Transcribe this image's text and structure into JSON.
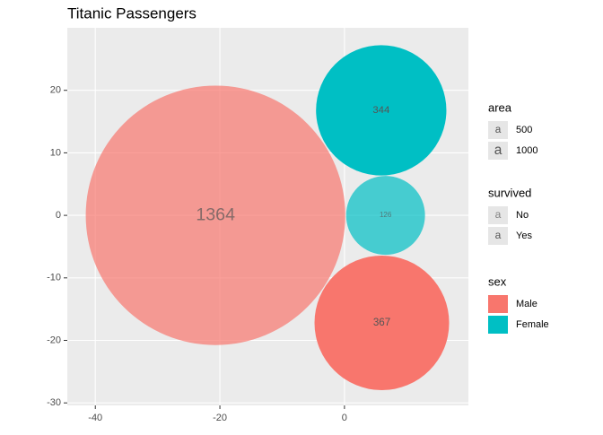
{
  "chart_data": {
    "type": "packed-circle",
    "title": "Titanic Passengers",
    "x": [
      -20.7,
      5.9,
      6.6,
      6.0
    ],
    "y": [
      0,
      16.8,
      0,
      -17.2
    ],
    "values": [
      1364,
      344,
      126,
      367
    ],
    "sex": [
      "Male",
      "Female",
      "Female",
      "Male"
    ],
    "survived": [
      "No",
      "Yes",
      "No",
      "Yes"
    ],
    "xlim": [
      -44.5,
      19.9
    ],
    "ylim": [
      -30.4,
      30.0
    ],
    "xticks": [
      -40,
      -20,
      0
    ],
    "yticks": [
      -30,
      -20,
      -10,
      0,
      10,
      20
    ],
    "grid": true,
    "legends": [
      {
        "title": "area",
        "labels": [
          500,
          1000
        ]
      },
      {
        "title": "survived",
        "labels": [
          "No",
          "Yes"
        ],
        "alphas": [
          0.7,
          1
        ]
      },
      {
        "title": "sex",
        "labels": [
          "Male",
          "Female"
        ],
        "colors": [
          "#f8766d",
          "#00bfc4"
        ]
      }
    ]
  }
}
